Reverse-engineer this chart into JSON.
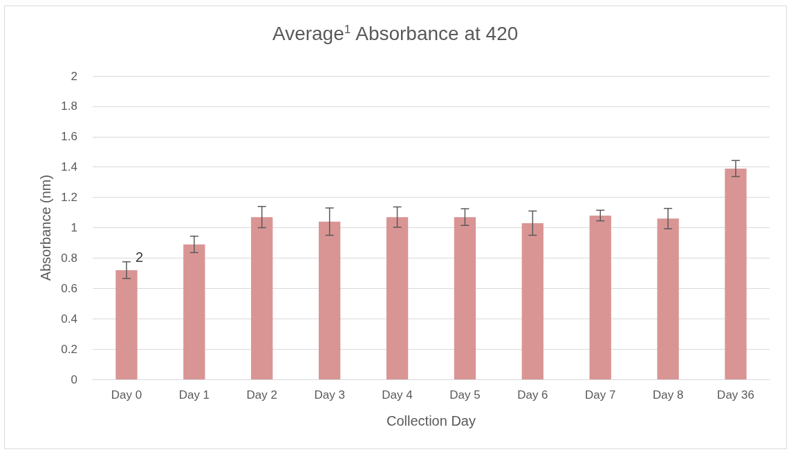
{
  "chart_data": {
    "type": "bar",
    "title": "Average$^{1}$ Absorbance at 420",
    "xlabel": "Collection Day",
    "ylabel": "Absorbance (nm)",
    "categories": [
      "Day 0",
      "Day 1",
      "Day 2",
      "Day 3",
      "Day 4",
      "Day 5",
      "Day 6",
      "Day 7",
      "Day 8",
      "Day 36"
    ],
    "values": [
      0.72,
      0.89,
      1.07,
      1.04,
      1.07,
      1.07,
      1.03,
      1.08,
      1.06,
      1.39
    ],
    "errors": [
      0.055,
      0.054,
      0.07,
      0.09,
      0.067,
      0.055,
      0.08,
      0.035,
      0.067,
      0.053
    ],
    "color": "#d99594",
    "ylim": [
      0,
      2
    ],
    "yticks": [
      0,
      0.2,
      0.4,
      0.6,
      0.8,
      1,
      1.2,
      1.4,
      1.6,
      1.8,
      2
    ],
    "grid": "y",
    "annotations": [
      {
        "text": "2",
        "x": "Day 0",
        "y": 0.78
      }
    ]
  }
}
